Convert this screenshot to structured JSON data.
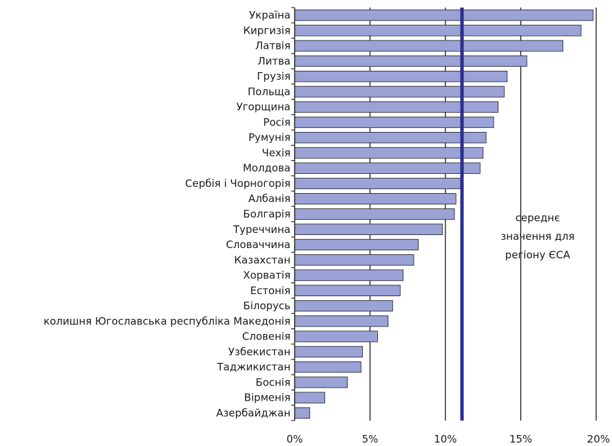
{
  "chart_data": {
    "type": "bar",
    "orientation": "horizontal",
    "categories": [
      "Україна",
      "Киргизія",
      "Латвія",
      "Литва",
      "Грузія",
      "Польща",
      "Угорщина",
      "Росія",
      "Румунія",
      "Чехія",
      "Молдова",
      "Сербія і Чорногорія",
      "Албанія",
      "Болгарія",
      "Туреччина",
      "Словаччина",
      "Казахстан",
      "Хорватія",
      "Естонія",
      "Білорусь",
      "колишня Югославська республіка Македонія",
      "Словенія",
      "Узбекистан",
      "Таджикистан",
      "Боснія",
      "Вірменія",
      "Азербайджан"
    ],
    "values": [
      19.8,
      19.0,
      17.8,
      15.4,
      14.1,
      13.9,
      13.5,
      13.2,
      12.7,
      12.5,
      12.3,
      11.0,
      10.7,
      10.6,
      9.8,
      8.2,
      7.9,
      7.2,
      7.0,
      6.5,
      6.2,
      5.5,
      4.5,
      4.4,
      3.5,
      2.0,
      1.0
    ],
    "xlim": [
      0,
      20
    ],
    "x_ticks": [
      "0%",
      "5%",
      "10%",
      "15%",
      "20%"
    ],
    "x_tick_values": [
      0,
      5,
      10,
      15,
      20
    ],
    "grid": "vertical",
    "bar_color": "#9aa2d6",
    "reference_line": {
      "value": 11.1,
      "color": "#2b2f8f",
      "label": [
        "середнє",
        "значення для",
        "регіону ЄСА"
      ]
    }
  }
}
